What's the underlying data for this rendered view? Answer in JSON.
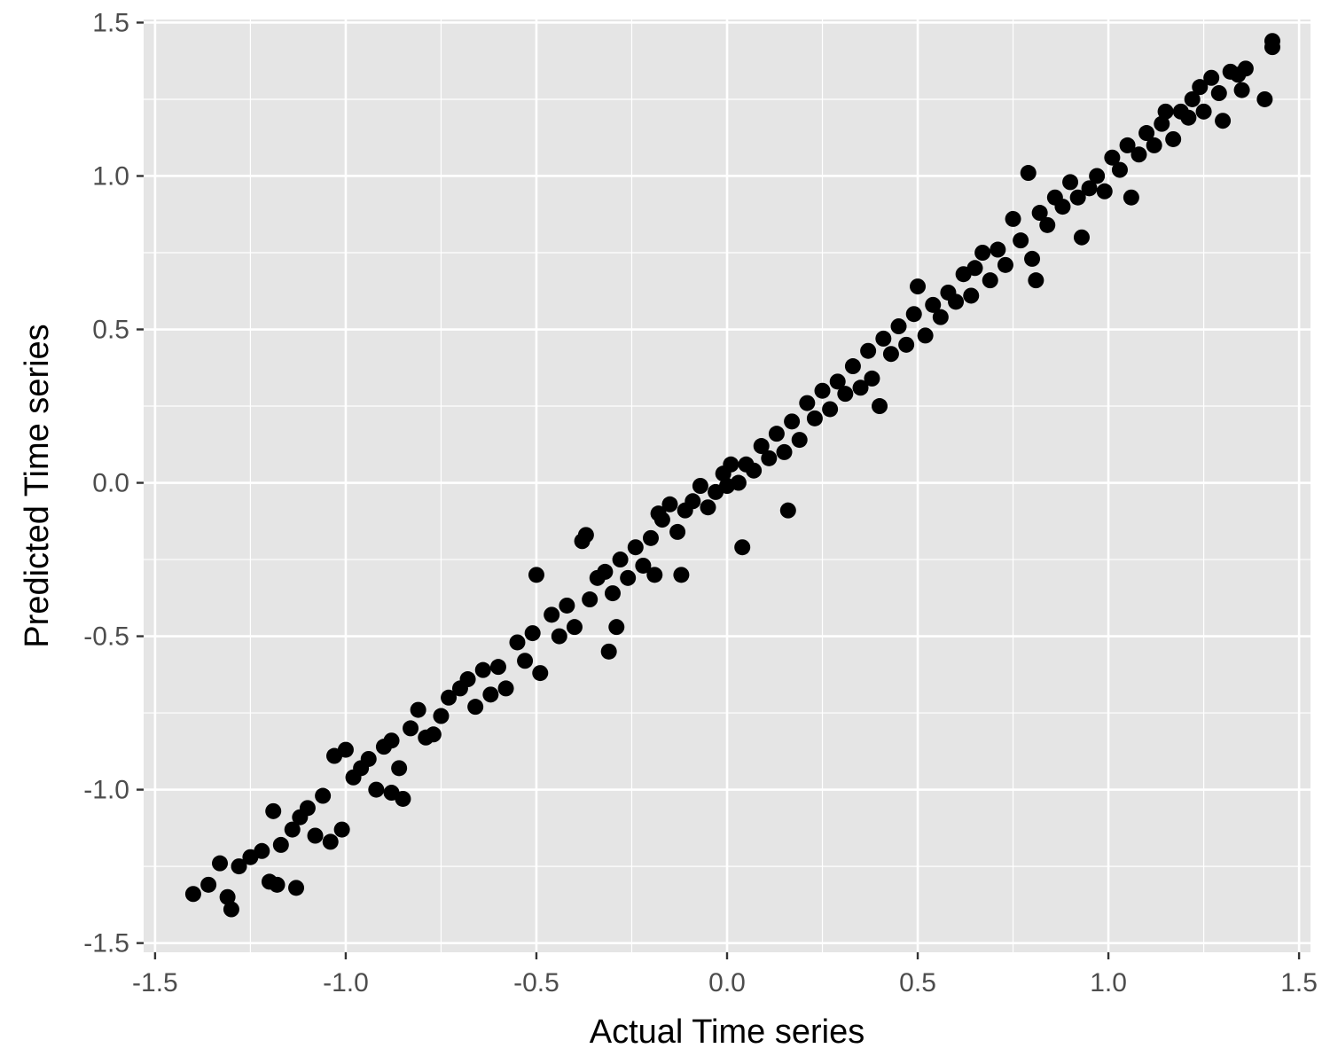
{
  "chart_data": {
    "type": "scatter",
    "title": "",
    "xlabel": "Actual Time series",
    "ylabel": "Predicted Time series",
    "xlim": [
      -1.53,
      1.53
    ],
    "ylim": [
      -1.53,
      1.51
    ],
    "x_ticks": [
      -1.5,
      -1.0,
      -0.5,
      0.0,
      0.5,
      1.0,
      1.5
    ],
    "x_tick_labels": [
      "-1.5",
      "-1.0",
      "-0.5",
      "0.0",
      "0.5",
      "1.0",
      "1.5"
    ],
    "y_ticks": [
      -1.5,
      -1.0,
      -0.5,
      0.0,
      0.5,
      1.0,
      1.5
    ],
    "y_tick_labels": [
      "-1.5",
      "-1.0",
      "-0.5",
      "0.0",
      "0.5",
      "1.0",
      "1.5"
    ],
    "grid": true,
    "panel_color": "#e5e5e5",
    "grid_color": "#ffffff",
    "point_color": "#000000",
    "series": [
      {
        "name": "points",
        "points": [
          [
            -1.4,
            -1.34
          ],
          [
            -1.36,
            -1.31
          ],
          [
            -1.33,
            -1.24
          ],
          [
            -1.31,
            -1.35
          ],
          [
            -1.3,
            -1.39
          ],
          [
            -1.28,
            -1.25
          ],
          [
            -1.25,
            -1.22
          ],
          [
            -1.22,
            -1.2
          ],
          [
            -1.2,
            -1.3
          ],
          [
            -1.18,
            -1.31
          ],
          [
            -1.19,
            -1.07
          ],
          [
            -1.17,
            -1.18
          ],
          [
            -1.14,
            -1.13
          ],
          [
            -1.13,
            -1.32
          ],
          [
            -1.12,
            -1.09
          ],
          [
            -1.1,
            -1.06
          ],
          [
            -1.08,
            -1.15
          ],
          [
            -1.06,
            -1.02
          ],
          [
            -1.04,
            -1.17
          ],
          [
            -1.03,
            -0.89
          ],
          [
            -1.01,
            -1.13
          ],
          [
            -1.0,
            -0.87
          ],
          [
            -0.98,
            -0.96
          ],
          [
            -0.96,
            -0.93
          ],
          [
            -0.94,
            -0.9
          ],
          [
            -0.92,
            -1.0
          ],
          [
            -0.9,
            -0.86
          ],
          [
            -0.88,
            -0.84
          ],
          [
            -0.88,
            -1.01
          ],
          [
            -0.86,
            -0.93
          ],
          [
            -0.85,
            -1.03
          ],
          [
            -0.83,
            -0.8
          ],
          [
            -0.81,
            -0.74
          ],
          [
            -0.79,
            -0.83
          ],
          [
            -0.77,
            -0.82
          ],
          [
            -0.75,
            -0.76
          ],
          [
            -0.73,
            -0.7
          ],
          [
            -0.7,
            -0.67
          ],
          [
            -0.68,
            -0.64
          ],
          [
            -0.66,
            -0.73
          ],
          [
            -0.64,
            -0.61
          ],
          [
            -0.62,
            -0.69
          ],
          [
            -0.6,
            -0.6
          ],
          [
            -0.58,
            -0.67
          ],
          [
            -0.55,
            -0.52
          ],
          [
            -0.53,
            -0.58
          ],
          [
            -0.51,
            -0.49
          ],
          [
            -0.49,
            -0.62
          ],
          [
            -0.5,
            -0.3
          ],
          [
            -0.46,
            -0.43
          ],
          [
            -0.44,
            -0.5
          ],
          [
            -0.42,
            -0.4
          ],
          [
            -0.4,
            -0.47
          ],
          [
            -0.38,
            -0.19
          ],
          [
            -0.37,
            -0.17
          ],
          [
            -0.36,
            -0.38
          ],
          [
            -0.34,
            -0.31
          ],
          [
            -0.31,
            -0.55
          ],
          [
            -0.32,
            -0.29
          ],
          [
            -0.3,
            -0.36
          ],
          [
            -0.29,
            -0.47
          ],
          [
            -0.28,
            -0.25
          ],
          [
            -0.26,
            -0.31
          ],
          [
            -0.24,
            -0.21
          ],
          [
            -0.22,
            -0.27
          ],
          [
            -0.2,
            -0.18
          ],
          [
            -0.18,
            -0.1
          ],
          [
            -0.19,
            -0.3
          ],
          [
            -0.17,
            -0.12
          ],
          [
            -0.15,
            -0.07
          ],
          [
            -0.13,
            -0.16
          ],
          [
            -0.12,
            -0.3
          ],
          [
            -0.11,
            -0.09
          ],
          [
            -0.09,
            -0.06
          ],
          [
            -0.07,
            -0.01
          ],
          [
            -0.05,
            -0.08
          ],
          [
            -0.03,
            -0.03
          ],
          [
            -0.01,
            0.03
          ],
          [
            0.0,
            -0.01
          ],
          [
            0.01,
            0.06
          ],
          [
            0.03,
            0.0
          ],
          [
            0.04,
            -0.21
          ],
          [
            0.05,
            0.06
          ],
          [
            0.07,
            0.04
          ],
          [
            0.09,
            0.12
          ],
          [
            0.11,
            0.08
          ],
          [
            0.13,
            0.16
          ],
          [
            0.15,
            0.1
          ],
          [
            0.16,
            -0.09
          ],
          [
            0.17,
            0.2
          ],
          [
            0.19,
            0.14
          ],
          [
            0.21,
            0.26
          ],
          [
            0.23,
            0.21
          ],
          [
            0.25,
            0.3
          ],
          [
            0.27,
            0.24
          ],
          [
            0.29,
            0.33
          ],
          [
            0.31,
            0.29
          ],
          [
            0.33,
            0.38
          ],
          [
            0.35,
            0.31
          ],
          [
            0.37,
            0.43
          ],
          [
            0.38,
            0.34
          ],
          [
            0.4,
            0.25
          ],
          [
            0.41,
            0.47
          ],
          [
            0.43,
            0.42
          ],
          [
            0.45,
            0.51
          ],
          [
            0.47,
            0.45
          ],
          [
            0.49,
            0.55
          ],
          [
            0.5,
            0.64
          ],
          [
            0.52,
            0.48
          ],
          [
            0.54,
            0.58
          ],
          [
            0.56,
            0.54
          ],
          [
            0.58,
            0.62
          ],
          [
            0.6,
            0.59
          ],
          [
            0.62,
            0.68
          ],
          [
            0.64,
            0.61
          ],
          [
            0.65,
            0.7
          ],
          [
            0.67,
            0.75
          ],
          [
            0.69,
            0.66
          ],
          [
            0.71,
            0.76
          ],
          [
            0.73,
            0.71
          ],
          [
            0.75,
            0.86
          ],
          [
            0.77,
            0.79
          ],
          [
            0.79,
            1.01
          ],
          [
            0.8,
            0.73
          ],
          [
            0.81,
            0.66
          ],
          [
            0.82,
            0.88
          ],
          [
            0.84,
            0.84
          ],
          [
            0.86,
            0.93
          ],
          [
            0.88,
            0.9
          ],
          [
            0.9,
            0.98
          ],
          [
            0.92,
            0.93
          ],
          [
            0.93,
            0.8
          ],
          [
            0.95,
            0.96
          ],
          [
            0.97,
            1.0
          ],
          [
            0.99,
            0.95
          ],
          [
            1.01,
            1.06
          ],
          [
            1.03,
            1.02
          ],
          [
            1.05,
            1.1
          ],
          [
            1.06,
            0.93
          ],
          [
            1.08,
            1.07
          ],
          [
            1.1,
            1.14
          ],
          [
            1.12,
            1.1
          ],
          [
            1.14,
            1.17
          ],
          [
            1.15,
            1.21
          ],
          [
            1.17,
            1.12
          ],
          [
            1.19,
            1.21
          ],
          [
            1.21,
            1.19
          ],
          [
            1.22,
            1.25
          ],
          [
            1.24,
            1.29
          ],
          [
            1.25,
            1.21
          ],
          [
            1.27,
            1.32
          ],
          [
            1.29,
            1.27
          ],
          [
            1.3,
            1.18
          ],
          [
            1.32,
            1.34
          ],
          [
            1.34,
            1.33
          ],
          [
            1.35,
            1.28
          ],
          [
            1.36,
            1.35
          ],
          [
            1.41,
            1.25
          ],
          [
            1.43,
            1.44
          ],
          [
            1.43,
            1.42
          ]
        ]
      }
    ]
  }
}
